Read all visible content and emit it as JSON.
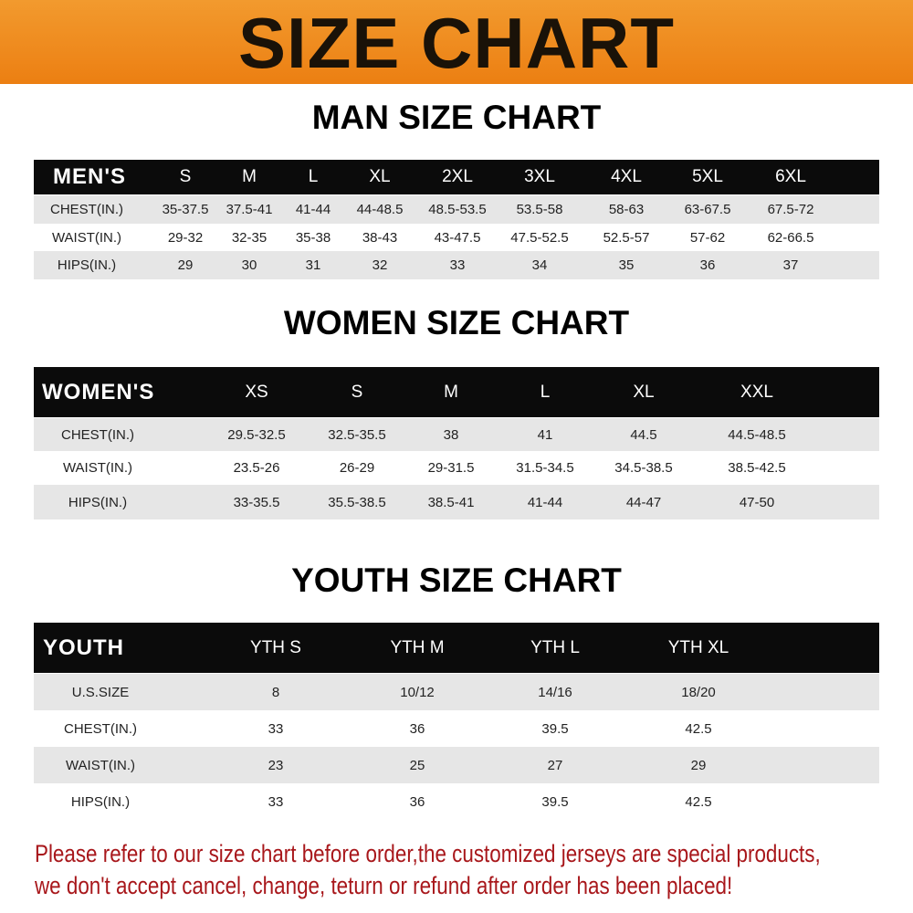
{
  "banner": {
    "title": "SIZE CHART"
  },
  "men": {
    "title": "MAN SIZE CHART",
    "header": [
      "MEN'S",
      "S",
      "M",
      "L",
      "XL",
      "2XL",
      "3XL",
      "4XL",
      "5XL",
      "6XL"
    ],
    "rows": [
      [
        "CHEST(IN.)",
        "35-37.5",
        "37.5-41",
        "41-44",
        "44-48.5",
        "48.5-53.5",
        "53.5-58",
        "58-63",
        "63-67.5",
        "67.5-72"
      ],
      [
        "WAIST(IN.)",
        "29-32",
        "32-35",
        "35-38",
        "38-43",
        "43-47.5",
        "47.5-52.5",
        "52.5-57",
        "57-62",
        "62-66.5"
      ],
      [
        "HIPS(IN.)",
        "29",
        "30",
        "31",
        "32",
        "33",
        "34",
        "35",
        "36",
        "37"
      ]
    ]
  },
  "women": {
    "title": "WOMEN SIZE CHART",
    "header": [
      "WOMEN'S",
      "XS",
      "S",
      "M",
      "L",
      "XL",
      "XXL"
    ],
    "rows": [
      [
        "CHEST(IN.)",
        "29.5-32.5",
        "32.5-35.5",
        "38",
        "41",
        "44.5",
        "44.5-48.5"
      ],
      [
        "WAIST(IN.)",
        "23.5-26",
        "26-29",
        "29-31.5",
        "31.5-34.5",
        "34.5-38.5",
        "38.5-42.5"
      ],
      [
        "HIPS(IN.)",
        "33-35.5",
        "35.5-38.5",
        "38.5-41",
        "41-44",
        "44-47",
        "47-50"
      ]
    ]
  },
  "youth": {
    "title": "YOUTH SIZE CHART",
    "header": [
      "YOUTH",
      "YTH S",
      "YTH M",
      "YTH L",
      "YTH XL"
    ],
    "rows": [
      [
        "U.S.SIZE",
        "8",
        "10/12",
        "14/16",
        "18/20"
      ],
      [
        "CHEST(IN.)",
        "33",
        "36",
        "39.5",
        "42.5"
      ],
      [
        "WAIST(IN.)",
        "23",
        "25",
        "27",
        "29"
      ],
      [
        "HIPS(IN.)",
        "33",
        "36",
        "39.5",
        "42.5"
      ]
    ]
  },
  "footer": {
    "line1": "Please refer to our size chart before order,the customized jerseys are special products,",
    "line2": "we don't accept cancel, change, teturn or refund after order has been placed!"
  }
}
